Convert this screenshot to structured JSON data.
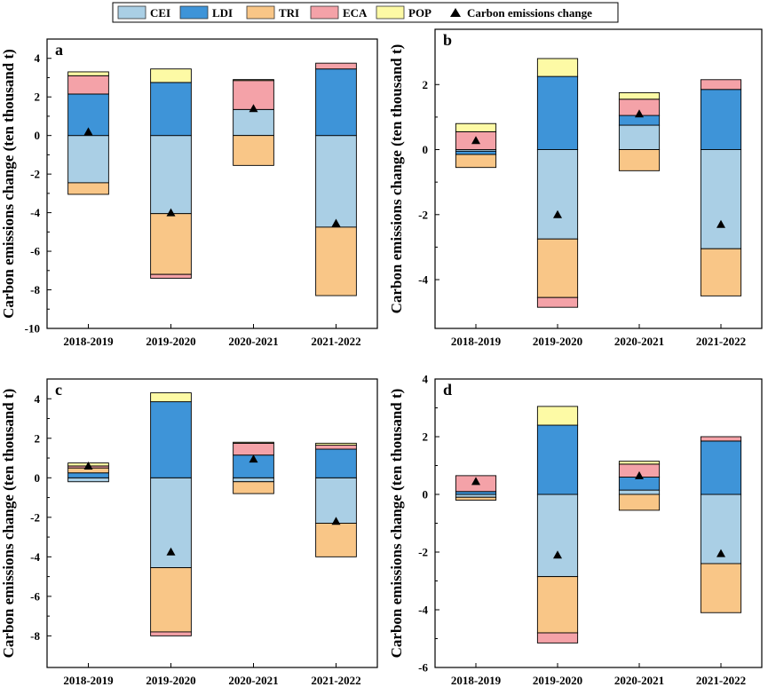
{
  "legend": {
    "items": [
      {
        "name": "CEI",
        "color": "#aacfe5"
      },
      {
        "name": "LDI",
        "color": "#3e94d8"
      },
      {
        "name": "TRI",
        "color": "#f9c687"
      },
      {
        "name": "ECA",
        "color": "#f4a2a8"
      },
      {
        "name": "POP",
        "color": "#fdfaa5"
      }
    ],
    "marker_label": "Carbon emissions change"
  },
  "chart_data": [
    {
      "type": "bar",
      "stacked": true,
      "panel_label": "a",
      "ylabel": "Carbon emissions change (ten thousand t)",
      "xlabel": "",
      "ylim": [
        -10,
        5
      ],
      "yticks": [
        -10,
        -8,
        -6,
        -4,
        -2,
        0,
        2,
        4
      ],
      "categories": [
        "2018-2019",
        "2019-2020",
        "2020-2021",
        "2021-2022"
      ],
      "series": [
        {
          "name": "CEI",
          "values": [
            -2.45,
            -4.05,
            1.35,
            -4.75
          ]
        },
        {
          "name": "LDI",
          "values": [
            2.15,
            2.75,
            0.0,
            3.45
          ]
        },
        {
          "name": "TRI",
          "values": [
            -0.6,
            -3.15,
            -1.55,
            -3.55
          ]
        },
        {
          "name": "ECA",
          "values": [
            0.95,
            -0.2,
            1.5,
            0.3
          ]
        },
        {
          "name": "POP",
          "values": [
            0.2,
            0.7,
            0.05,
            0.0
          ]
        }
      ],
      "markers": {
        "name": "Carbon emissions change",
        "values": [
          0.2,
          -4.0,
          1.4,
          -4.55
        ]
      }
    },
    {
      "type": "bar",
      "stacked": true,
      "panel_label": "b",
      "ylabel": "Carbon emissions change (ten thousand t)",
      "xlabel": "",
      "ylim": [
        -5.5,
        3.7
      ],
      "yticks": [
        -4,
        -2,
        0,
        2
      ],
      "categories": [
        "2018-2019",
        "2019-2020",
        "2020-2021",
        "2021-2022"
      ],
      "series": [
        {
          "name": "CEI",
          "values": [
            -0.05,
            -2.75,
            0.75,
            -3.05
          ]
        },
        {
          "name": "LDI",
          "values": [
            -0.1,
            2.25,
            0.3,
            1.85
          ]
        },
        {
          "name": "TRI",
          "values": [
            -0.4,
            -1.8,
            -0.65,
            -1.45
          ]
        },
        {
          "name": "ECA",
          "values": [
            0.55,
            -0.3,
            0.5,
            0.3
          ]
        },
        {
          "name": "POP",
          "values": [
            0.25,
            0.55,
            0.2,
            0.0
          ]
        }
      ],
      "markers": {
        "name": "Carbon emissions change",
        "values": [
          0.28,
          -2.0,
          1.1,
          -2.3
        ]
      }
    },
    {
      "type": "bar",
      "stacked": true,
      "panel_label": "c",
      "ylabel": "Carbon emissions change (ten thousand t)",
      "xlabel": "",
      "ylim": [
        -9.6,
        5.0
      ],
      "yticks": [
        -8,
        -6,
        -4,
        -2,
        0,
        2,
        4
      ],
      "categories": [
        "2018-2019",
        "2019-2020",
        "2020-2021",
        "2021-2022"
      ],
      "series": [
        {
          "name": "CEI",
          "values": [
            -0.2,
            -4.55,
            -0.2,
            -2.3
          ]
        },
        {
          "name": "LDI",
          "values": [
            0.25,
            3.85,
            1.15,
            1.45
          ]
        },
        {
          "name": "TRI",
          "values": [
            0.25,
            -3.25,
            -0.6,
            -1.7
          ]
        },
        {
          "name": "ECA",
          "values": [
            0.1,
            -0.2,
            0.6,
            0.2
          ]
        },
        {
          "name": "POP",
          "values": [
            0.15,
            0.45,
            0.05,
            0.1
          ]
        }
      ],
      "markers": {
        "name": "Carbon emissions change",
        "values": [
          0.6,
          -3.75,
          0.95,
          -2.2
        ]
      }
    },
    {
      "type": "bar",
      "stacked": true,
      "panel_label": "d",
      "ylabel": "Carbon emissions change (ten thousand t)",
      "xlabel": "",
      "ylim": [
        -6,
        4
      ],
      "yticks": [
        -6,
        -4,
        -2,
        0,
        2,
        4
      ],
      "categories": [
        "2018-2019",
        "2019-2020",
        "2020-2021",
        "2021-2022"
      ],
      "series": [
        {
          "name": "CEI",
          "values": [
            -0.1,
            -2.85,
            0.15,
            -2.4
          ]
        },
        {
          "name": "LDI",
          "values": [
            0.1,
            2.4,
            0.45,
            1.85
          ]
        },
        {
          "name": "TRI",
          "values": [
            -0.1,
            -1.95,
            -0.55,
            -1.7
          ]
        },
        {
          "name": "ECA",
          "values": [
            0.55,
            -0.35,
            0.45,
            0.15
          ]
        },
        {
          "name": "POP",
          "values": [
            0.0,
            0.65,
            0.1,
            0.0
          ]
        }
      ],
      "markers": {
        "name": "Carbon emissions change",
        "values": [
          0.45,
          -2.1,
          0.65,
          -2.05
        ]
      }
    }
  ]
}
